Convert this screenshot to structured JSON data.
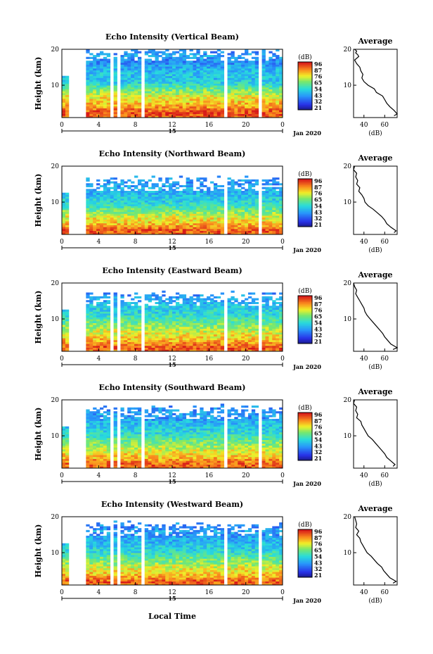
{
  "figure": {
    "xlabel": "Local Time",
    "date_label": "Jan 2020",
    "day_label": "15",
    "ylabel": "Height (km)",
    "colorbar_unit": "(dB)",
    "colorbar_ticks": [
      "96",
      "87",
      "76",
      "65",
      "54",
      "43",
      "32",
      "21"
    ],
    "avg_title": "Average",
    "avg_xlabel": "(dB)"
  },
  "chart_data": [
    {
      "type": "heatmap",
      "title": "Echo Intensity (Vertical Beam)",
      "x_ticks": [
        "0",
        "4",
        "8",
        "12",
        "16",
        "20",
        "0"
      ],
      "y_ticks": [
        "20",
        "10"
      ],
      "xlim": [
        0,
        24
      ],
      "ylim": [
        1,
        20
      ],
      "colorbar_ticks": [
        "96",
        "87",
        "76",
        "65",
        "54",
        "43",
        "32",
        "21"
      ],
      "profile_top_km": 19.5,
      "gaps_hours": [
        [
          0.6,
          2.7
        ],
        [
          5.2,
          5.5
        ],
        [
          5.9,
          6.2
        ],
        [
          8.6,
          8.9
        ],
        [
          17.6,
          18.0
        ],
        [
          21.5,
          21.8
        ]
      ],
      "average_profile": {
        "xlim": [
          30,
          72
        ],
        "x_ticks": [
          "40",
          "60"
        ],
        "y_ticks": [
          "20",
          "10"
        ],
        "height_km": [
          20,
          19.5,
          19,
          18.5,
          18,
          17,
          16,
          15,
          14,
          13,
          12,
          11,
          10,
          9,
          8,
          7,
          6,
          5,
          4,
          3,
          2,
          1.5
        ],
        "db": [
          31,
          33,
          32,
          34,
          35,
          31,
          33,
          36,
          37,
          39,
          38,
          40,
          44,
          50,
          52,
          58,
          60,
          62,
          65,
          69,
          72,
          69
        ]
      }
    },
    {
      "type": "heatmap",
      "title": "Echo Intensity (Northward Beam)",
      "x_ticks": [
        "0",
        "4",
        "8",
        "12",
        "16",
        "20",
        "0"
      ],
      "y_ticks": [
        "20",
        "10"
      ],
      "xlim": [
        0,
        24
      ],
      "ylim": [
        1,
        20
      ],
      "colorbar_ticks": [
        "96",
        "87",
        "76",
        "65",
        "54",
        "43",
        "32",
        "21"
      ],
      "profile_top_km": 16,
      "gaps_hours": [
        [
          0.6,
          2.7
        ],
        [
          17.6,
          18.0
        ],
        [
          21.5,
          21.8
        ]
      ],
      "average_profile": {
        "xlim": [
          30,
          72
        ],
        "x_ticks": [
          "40",
          "60"
        ],
        "y_ticks": [
          "20",
          "10"
        ],
        "height_km": [
          20,
          19,
          18,
          17,
          16,
          15,
          14,
          13,
          12,
          11,
          10,
          9,
          8,
          7,
          6,
          5,
          4,
          3,
          2,
          1.5
        ],
        "db": [
          31,
          30,
          33,
          32,
          34,
          33,
          36,
          35,
          38,
          40,
          41,
          44,
          49,
          53,
          57,
          60,
          62,
          66,
          71,
          69
        ]
      }
    },
    {
      "type": "heatmap",
      "title": "Echo Intensity (Eastward Beam)",
      "x_ticks": [
        "0",
        "4",
        "8",
        "12",
        "16",
        "20",
        "0"
      ],
      "y_ticks": [
        "20",
        "10"
      ],
      "xlim": [
        0,
        24
      ],
      "ylim": [
        1,
        20
      ],
      "colorbar_ticks": [
        "96",
        "87",
        "76",
        "65",
        "54",
        "43",
        "32",
        "21"
      ],
      "profile_top_km": 16.5,
      "gaps_hours": [
        [
          0.6,
          2.7
        ],
        [
          5.2,
          5.5
        ],
        [
          5.9,
          6.2
        ],
        [
          8.6,
          8.9
        ],
        [
          17.6,
          18.0
        ],
        [
          21.5,
          21.8
        ]
      ],
      "average_profile": {
        "xlim": [
          30,
          72
        ],
        "x_ticks": [
          "40",
          "60"
        ],
        "y_ticks": [
          "20",
          "10"
        ],
        "height_km": [
          20,
          19,
          18,
          17,
          16,
          15,
          14,
          13,
          12,
          11,
          10,
          9,
          8,
          7,
          6,
          5,
          4,
          3,
          2,
          1.5
        ],
        "db": [
          30,
          31,
          33,
          32,
          34,
          36,
          38,
          40,
          41,
          43,
          46,
          49,
          52,
          55,
          58,
          60,
          63,
          66,
          72,
          68
        ]
      }
    },
    {
      "type": "heatmap",
      "title": "Echo Intensity (Southward Beam)",
      "x_ticks": [
        "0",
        "4",
        "8",
        "12",
        "16",
        "20",
        "0"
      ],
      "y_ticks": [
        "20",
        "10"
      ],
      "xlim": [
        0,
        24
      ],
      "ylim": [
        1,
        20
      ],
      "colorbar_ticks": [
        "96",
        "87",
        "76",
        "65",
        "54",
        "43",
        "32",
        "21"
      ],
      "profile_top_km": 17.5,
      "gaps_hours": [
        [
          0.6,
          2.7
        ],
        [
          5.2,
          5.5
        ],
        [
          5.9,
          6.2
        ],
        [
          8.6,
          8.9
        ],
        [
          17.6,
          18.0
        ],
        [
          21.5,
          21.8
        ]
      ],
      "average_profile": {
        "xlim": [
          30,
          72
        ],
        "x_ticks": [
          "40",
          "60"
        ],
        "y_ticks": [
          "20",
          "10"
        ],
        "height_km": [
          20,
          19,
          18,
          17,
          16,
          15,
          14,
          13,
          12,
          11,
          10,
          9,
          8,
          7,
          6,
          5,
          4,
          3,
          2,
          1.5
        ],
        "db": [
          31,
          30,
          33,
          32,
          34,
          33,
          37,
          38,
          40,
          42,
          44,
          48,
          51,
          54,
          57,
          60,
          62,
          66,
          70,
          68
        ]
      }
    },
    {
      "type": "heatmap",
      "title": "Echo Intensity (Westward Beam)",
      "x_ticks": [
        "0",
        "4",
        "8",
        "12",
        "16",
        "20",
        "0"
      ],
      "y_ticks": [
        "20",
        "10"
      ],
      "xlim": [
        0,
        24
      ],
      "ylim": [
        1,
        20
      ],
      "colorbar_ticks": [
        "96",
        "87",
        "76",
        "65",
        "54",
        "43",
        "32",
        "21"
      ],
      "profile_top_km": 17.5,
      "gaps_hours": [
        [
          0.6,
          2.7
        ],
        [
          5.2,
          5.5
        ],
        [
          5.9,
          6.2
        ],
        [
          8.6,
          8.9
        ],
        [
          17.6,
          18.0
        ],
        [
          21.5,
          21.8
        ]
      ],
      "average_profile": {
        "xlim": [
          30,
          72
        ],
        "x_ticks": [
          "40",
          "60"
        ],
        "y_ticks": [
          "20",
          "10"
        ],
        "height_km": [
          20,
          19,
          18,
          17,
          16,
          15,
          14,
          13,
          12,
          11,
          10,
          9,
          8,
          7,
          6,
          5,
          4,
          3,
          2,
          1.5
        ],
        "db": [
          31,
          32,
          33,
          32,
          35,
          33,
          36,
          37,
          39,
          41,
          43,
          47,
          50,
          53,
          57,
          59,
          62,
          65,
          71,
          68
        ]
      }
    }
  ]
}
